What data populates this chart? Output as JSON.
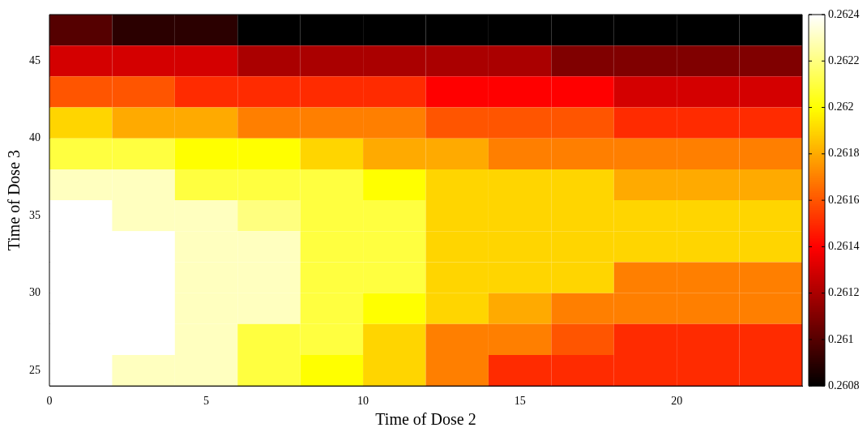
{
  "chart_data": {
    "type": "heatmap",
    "xlabel": "Time of Dose 2",
    "ylabel": "Time of Dose 3",
    "x": [
      1,
      3,
      5,
      7,
      9,
      11,
      13,
      15,
      17,
      19,
      21,
      23
    ],
    "y": [
      47,
      45,
      43,
      41,
      39,
      37,
      35,
      33,
      31,
      29,
      27,
      25
    ],
    "cells": [
      [
        0.261,
        0.2609,
        0.2609,
        0.2608,
        0.2608,
        0.2608,
        0.2608,
        0.2608,
        0.2608,
        0.2608,
        0.2608,
        0.2608
      ],
      [
        0.2613,
        0.2613,
        0.2613,
        0.2612,
        0.2612,
        0.2612,
        0.2612,
        0.2612,
        0.2611,
        0.2611,
        0.2611,
        0.2611
      ],
      [
        0.2616,
        0.2616,
        0.2615,
        0.2615,
        0.2615,
        0.2615,
        0.2614,
        0.2614,
        0.2614,
        0.2613,
        0.2613,
        0.2613
      ],
      [
        0.2619,
        0.2618,
        0.2618,
        0.2617,
        0.2617,
        0.2617,
        0.2616,
        0.2616,
        0.2616,
        0.2615,
        0.2615,
        0.2615
      ],
      [
        0.2621,
        0.2621,
        0.262,
        0.262,
        0.2619,
        0.2618,
        0.2618,
        0.2617,
        0.2617,
        0.2617,
        0.2617,
        0.2617
      ],
      [
        0.2623,
        0.2623,
        0.2621,
        0.2621,
        0.2621,
        0.262,
        0.2619,
        0.2619,
        0.2619,
        0.2618,
        0.2618,
        0.2618
      ],
      [
        0.2624,
        0.2623,
        0.2623,
        0.2622,
        0.2621,
        0.2621,
        0.2619,
        0.2619,
        0.2619,
        0.2619,
        0.2619,
        0.2619
      ],
      [
        0.2625,
        0.2624,
        0.2623,
        0.2623,
        0.2621,
        0.2621,
        0.2619,
        0.2619,
        0.2619,
        0.2619,
        0.2619,
        0.2619
      ],
      [
        0.2625,
        0.2625,
        0.2623,
        0.2623,
        0.2621,
        0.2621,
        0.2619,
        0.2619,
        0.2619,
        0.2617,
        0.2617,
        0.2617
      ],
      [
        0.2625,
        0.2625,
        0.2623,
        0.2623,
        0.2621,
        0.262,
        0.2619,
        0.2618,
        0.2617,
        0.2617,
        0.2617,
        0.2617
      ],
      [
        0.2625,
        0.2624,
        0.2623,
        0.2621,
        0.2621,
        0.2619,
        0.2617,
        0.2617,
        0.2616,
        0.2615,
        0.2615,
        0.2615
      ],
      [
        0.2624,
        0.2623,
        0.2623,
        0.2621,
        0.262,
        0.2619,
        0.2617,
        0.2615,
        0.2615,
        0.2615,
        0.2615,
        0.2615
      ]
    ],
    "xlim": [
      0,
      24
    ],
    "ylim": [
      24,
      48
    ],
    "xticks": [
      0,
      5,
      10,
      15,
      20
    ],
    "yticks": [
      25,
      30,
      35,
      40,
      45
    ],
    "clim": [
      0.2608,
      0.2624
    ],
    "cticks": [
      0.2608,
      0.261,
      0.2612,
      0.2614,
      0.2616,
      0.2618,
      0.262,
      0.2622,
      0.2624
    ]
  }
}
